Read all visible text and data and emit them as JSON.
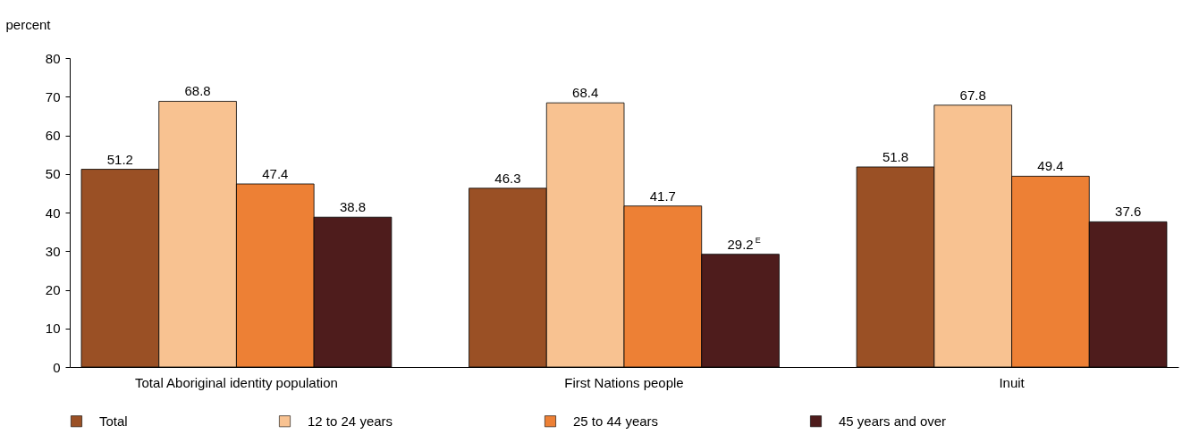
{
  "chart_data": {
    "type": "bar",
    "ylabel": "percent",
    "categories": [
      "Total Aboriginal identity population",
      "First Nations people",
      "Inuit"
    ],
    "series": [
      {
        "name": "Total",
        "color": "#9a5025",
        "values": [
          51.2,
          46.3,
          51.8
        ],
        "value_labels": [
          "51.2",
          "46.3",
          "51.8"
        ]
      },
      {
        "name": "12 to 24 years",
        "color": "#f8c291",
        "values": [
          68.8,
          68.4,
          67.8
        ],
        "value_labels": [
          "68.8",
          "68.4",
          "67.8"
        ]
      },
      {
        "name": "25 to 44 years",
        "color": "#ed8035",
        "values": [
          47.4,
          41.7,
          49.4
        ],
        "value_labels": [
          "47.4",
          "41.7",
          "49.4"
        ]
      },
      {
        "name": "45 years and over",
        "color": "#4e1c1c",
        "values": [
          38.8,
          29.2,
          37.6
        ],
        "value_labels": [
          "38.8",
          "29.2$^{E}$",
          "37.6"
        ]
      }
    ],
    "ylim": [
      0,
      80
    ],
    "yticks": [
      0,
      10,
      20,
      30,
      40,
      50,
      60,
      70,
      80
    ],
    "grid": false,
    "legend": "bottom"
  }
}
